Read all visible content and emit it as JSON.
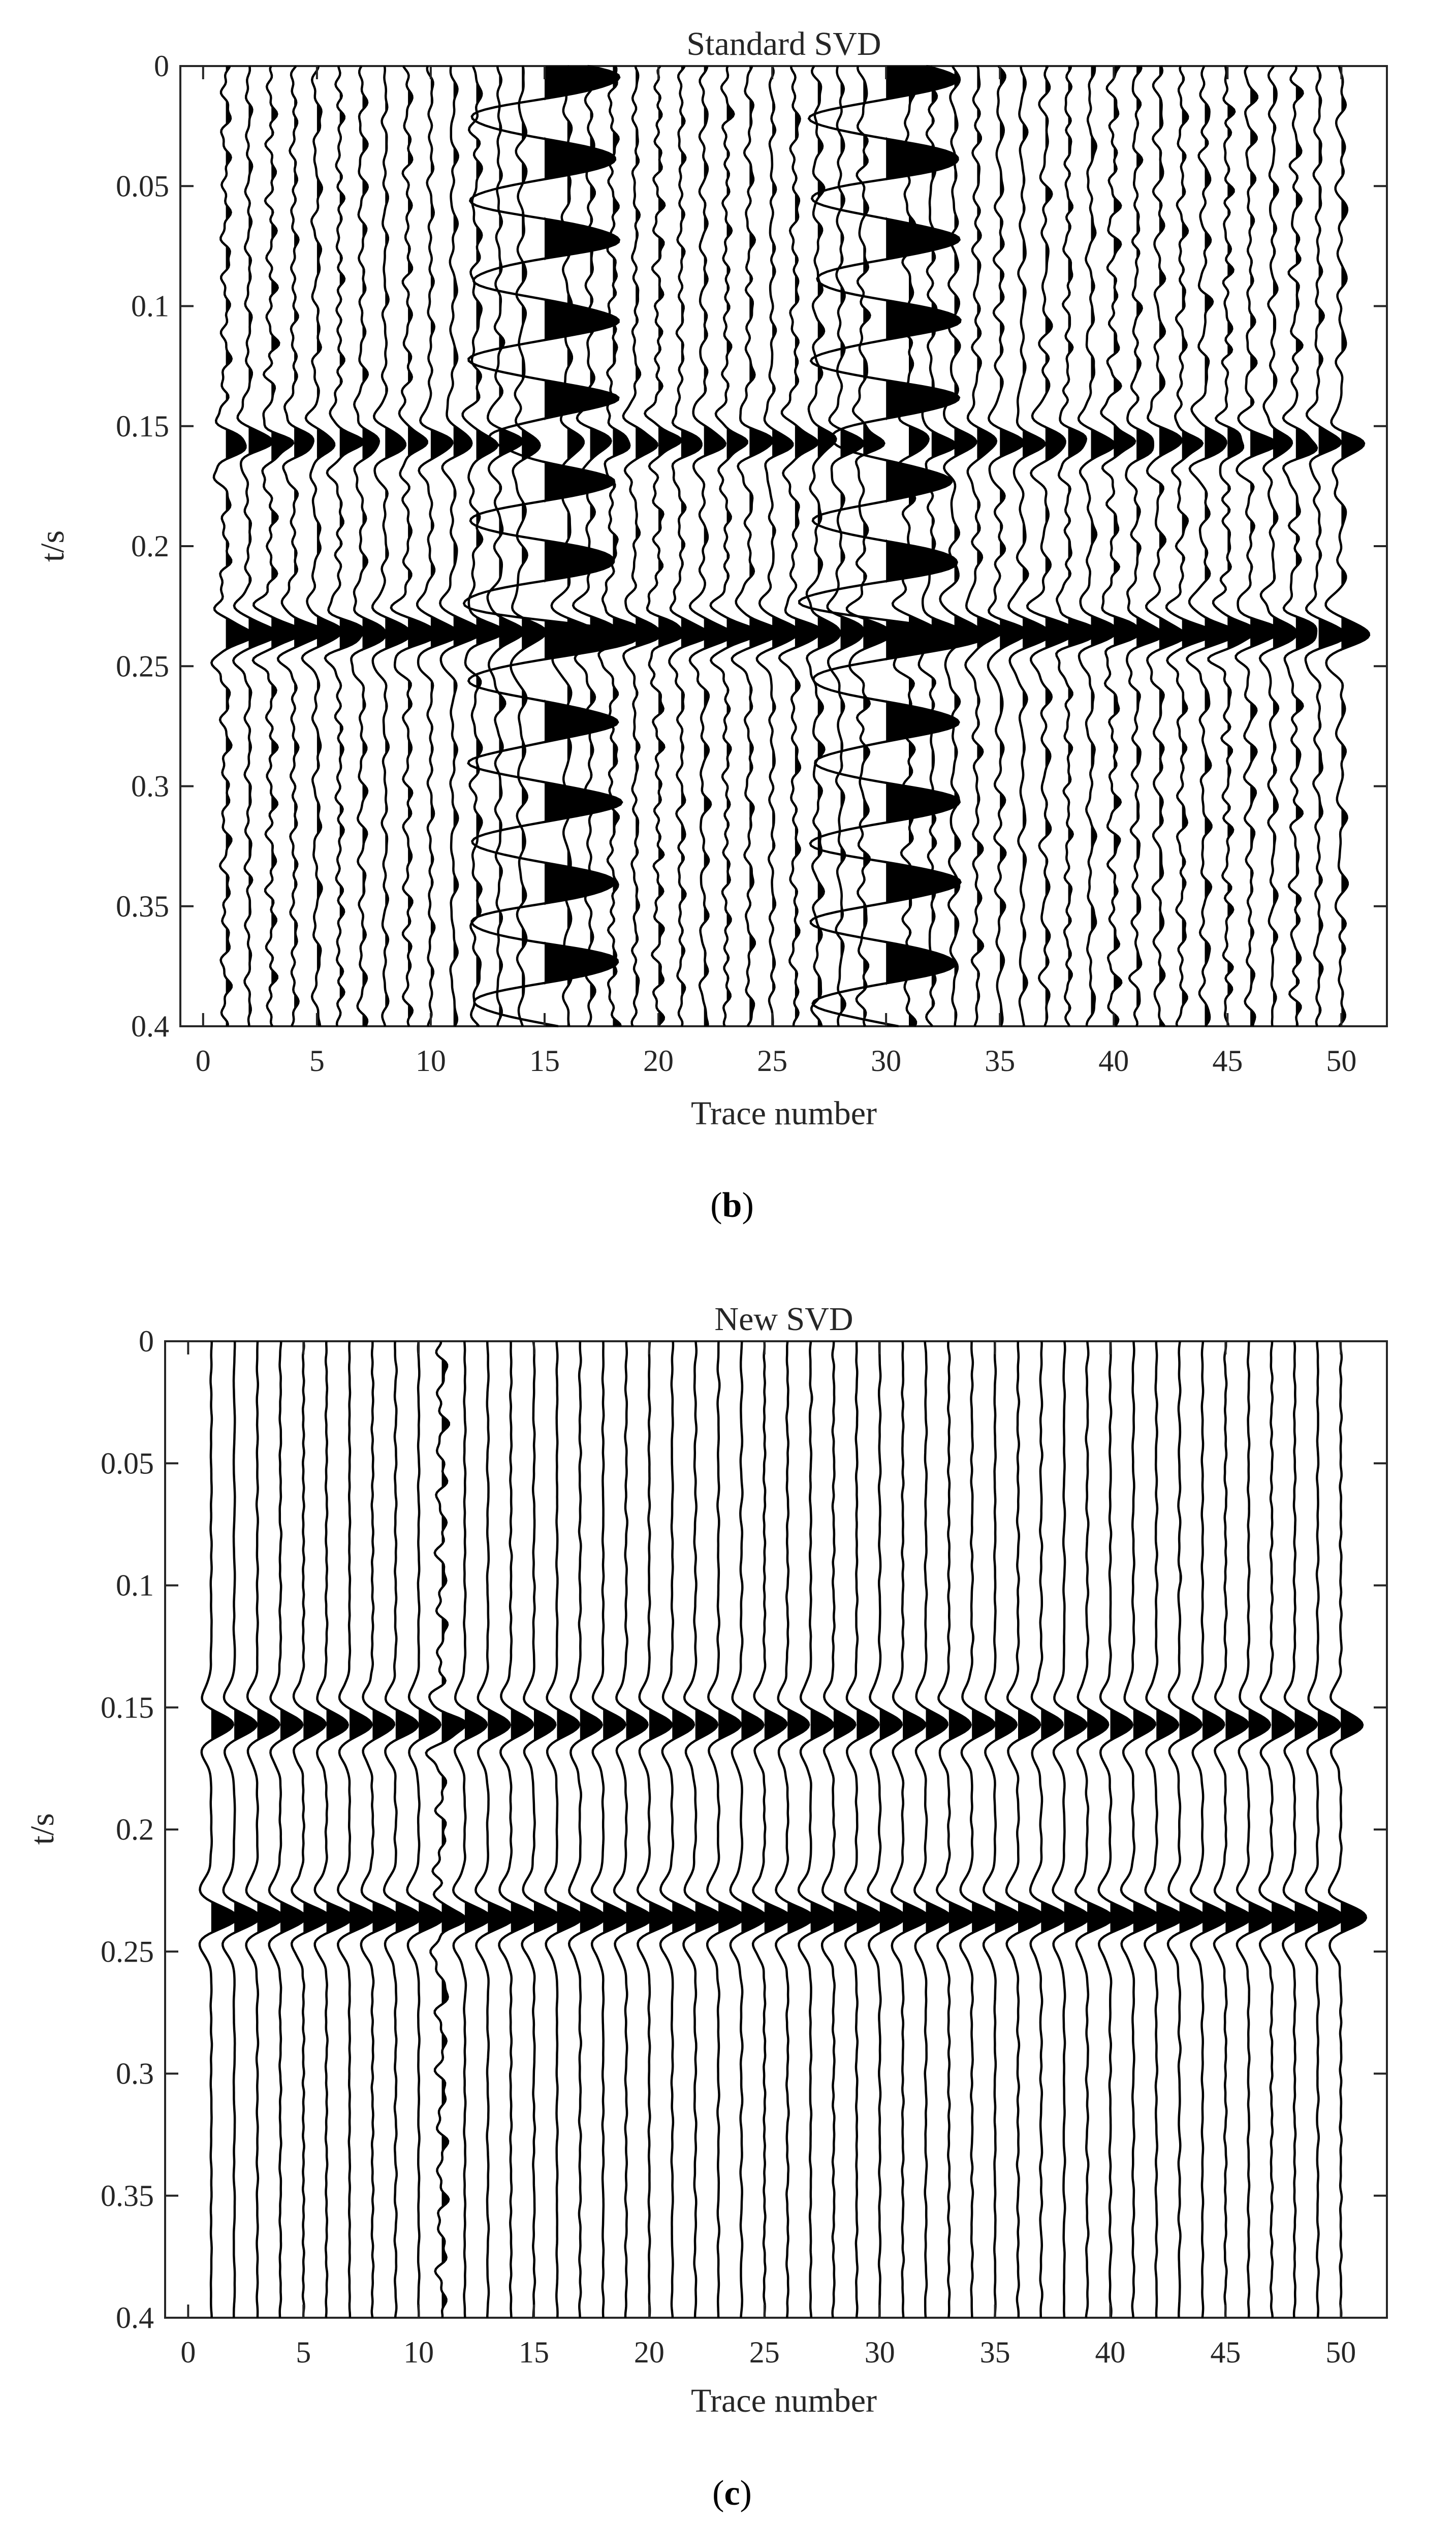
{
  "chart_data": [
    {
      "type": "line",
      "subtype": "seismic-wiggle-traces",
      "title": "Standard SVD",
      "caption_letter": "b",
      "xlabel": "Trace number",
      "ylabel": "t/s",
      "xlim": [
        -1,
        52
      ],
      "ylim": [
        0.4,
        0
      ],
      "y_reversed": true,
      "xticks": [
        0,
        5,
        10,
        15,
        20,
        25,
        30,
        35,
        40,
        45,
        50
      ],
      "yticks": [
        0,
        0.05,
        0.1,
        0.15,
        0.2,
        0.25,
        0.3,
        0.35,
        0.4
      ],
      "ytick_labels": [
        "0",
        "0.05",
        "0.1",
        "0.15",
        "0.2",
        "0.25",
        "0.3",
        "0.35",
        "0.4"
      ],
      "grid": false,
      "legend": "none",
      "trace_count": 50,
      "fill": "positive-black",
      "events": [
        {
          "time": 0.157,
          "amplitude": 0.55
        },
        {
          "time": 0.236,
          "amplitude": 0.75
        }
      ],
      "noise_level": 0.12,
      "sinusoidal_traces": [
        15,
        30
      ],
      "sinusoid_amplitude": 2.0,
      "sinusoid_period": 0.0335
    },
    {
      "type": "line",
      "subtype": "seismic-wiggle-traces",
      "title": "New SVD",
      "caption_letter": "c",
      "xlabel": "Trace number",
      "ylabel": "t/s",
      "xlim": [
        -1,
        52
      ],
      "ylim": [
        0.4,
        0
      ],
      "y_reversed": true,
      "xticks": [
        0,
        5,
        10,
        15,
        20,
        25,
        30,
        35,
        40,
        45,
        50
      ],
      "yticks": [
        0,
        0.05,
        0.1,
        0.15,
        0.2,
        0.25,
        0.3,
        0.35,
        0.4
      ],
      "ytick_labels": [
        "0",
        "0.05",
        "0.1",
        "0.15",
        "0.2",
        "0.25",
        "0.3",
        "0.35",
        "0.4"
      ],
      "grid": false,
      "legend": "none",
      "trace_count": 50,
      "fill": "positive-black",
      "events": [
        {
          "time": 0.157,
          "amplitude": 0.6
        },
        {
          "time": 0.236,
          "amplitude": 0.7
        }
      ],
      "noise_level": 0.02,
      "sinusoidal_traces": [],
      "noisy_trace": 11
    }
  ],
  "colors": {
    "trace": "#000000",
    "axis": "#262626",
    "background": "#ffffff"
  }
}
